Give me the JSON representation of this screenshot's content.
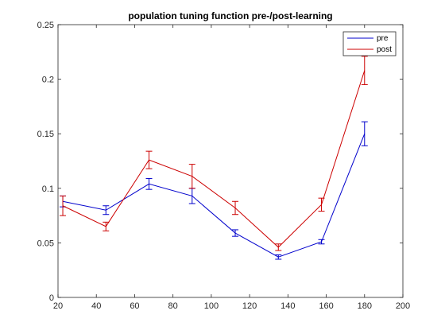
{
  "chart_data": {
    "type": "line",
    "title": "population tuning function pre-/post-learning",
    "xlabel": "",
    "ylabel": "",
    "xlim": [
      20,
      200
    ],
    "ylim": [
      0,
      0.25
    ],
    "xticks": [
      20,
      40,
      60,
      80,
      100,
      120,
      140,
      160,
      180,
      200
    ],
    "yticks": [
      0,
      0.05,
      0.1,
      0.15,
      0.2,
      0.25
    ],
    "ytick_labels": [
      "0",
      "0.05",
      "0.1",
      "0.15",
      "0.2",
      "0.25"
    ],
    "grid": false,
    "legend_position": "top-right",
    "x": [
      22.5,
      45,
      67.5,
      90,
      112.5,
      135,
      157.5,
      180
    ],
    "series": [
      {
        "name": "pre",
        "color": "#0000cc",
        "values": [
          0.088,
          0.08,
          0.104,
          0.093,
          0.059,
          0.037,
          0.051,
          0.15
        ],
        "errors": [
          0.005,
          0.004,
          0.005,
          0.007,
          0.003,
          0.002,
          0.002,
          0.011
        ]
      },
      {
        "name": "post",
        "color": "#cc0000",
        "values": [
          0.084,
          0.065,
          0.126,
          0.111,
          0.082,
          0.046,
          0.085,
          0.208
        ],
        "errors": [
          0.009,
          0.004,
          0.008,
          0.011,
          0.006,
          0.003,
          0.006,
          0.013
        ]
      }
    ]
  }
}
